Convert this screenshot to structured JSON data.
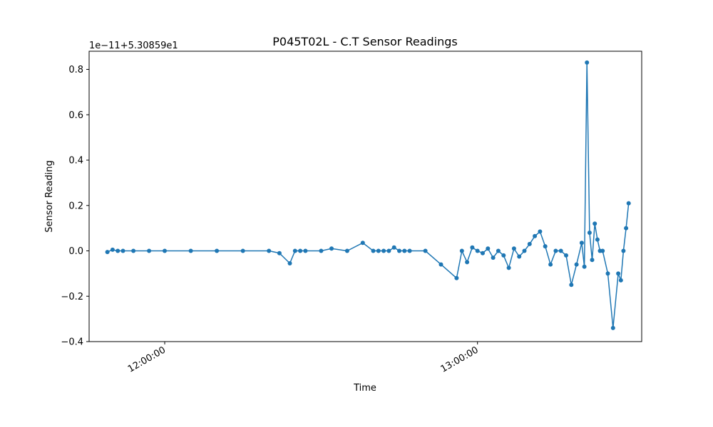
{
  "chart_data": {
    "type": "line",
    "title": "P045T02L - C.T Sensor Readings",
    "xlabel": "Time",
    "ylabel": "Sensor Reading",
    "offset_label": "1e−11+5.30859e1",
    "ylim": [
      -0.4,
      0.88
    ],
    "y_ticks": [
      {
        "value": -0.4,
        "label": "−0.4"
      },
      {
        "value": -0.2,
        "label": "−0.2"
      },
      {
        "value": 0.0,
        "label": "0.0"
      },
      {
        "value": 0.2,
        "label": "0.2"
      },
      {
        "value": 0.4,
        "label": "0.4"
      },
      {
        "value": 0.6,
        "label": "0.6"
      },
      {
        "value": 0.8,
        "label": "0.8"
      }
    ],
    "xlim": [
      "11:45:30",
      "13:31:30"
    ],
    "x_ticks": [
      {
        "value": "12:00:00",
        "label": "12:00:00"
      },
      {
        "value": "13:00:00",
        "label": "13:00:00"
      }
    ],
    "grid": false,
    "series_color": "#1f77b4",
    "series": [
      {
        "x": [
          "11:49:00",
          "11:50:00",
          "11:51:00",
          "11:52:00",
          "11:54:00",
          "11:57:00",
          "12:00:00",
          "12:05:00",
          "12:10:00",
          "12:15:00",
          "12:20:00",
          "12:22:00",
          "12:24:00",
          "12:25:00",
          "12:26:00",
          "12:27:00",
          "12:30:00",
          "12:32:00",
          "12:35:00",
          "12:38:00",
          "12:40:00",
          "12:41:00",
          "12:42:00",
          "12:43:00",
          "12:44:00",
          "12:45:00",
          "12:46:00",
          "12:47:00",
          "12:50:00",
          "12:53:00",
          "12:56:00",
          "12:57:00",
          "12:58:00",
          "12:59:00",
          "13:00:00",
          "13:01:00",
          "13:02:00",
          "13:03:00",
          "13:04:00",
          "13:05:00",
          "13:06:00",
          "13:07:00",
          "13:08:00",
          "13:09:00",
          "13:10:00",
          "13:11:00",
          "13:12:00",
          "13:13:00",
          "13:14:00",
          "13:15:00",
          "13:16:00",
          "13:17:00",
          "13:18:00",
          "13:19:00",
          "13:20:00",
          "13:20:30",
          "13:21:00",
          "13:21:30",
          "13:22:00",
          "13:22:30",
          "13:23:00",
          "13:23:30",
          "13:24:00",
          "13:25:00",
          "13:26:00",
          "13:27:00",
          "13:27:30",
          "13:28:00",
          "13:28:30",
          "13:29:00"
        ],
        "y": [
          -0.005,
          0.005,
          0.0,
          0.0,
          0.0,
          0.0,
          0.0,
          0.0,
          0.0,
          0.0,
          0.0,
          -0.01,
          -0.055,
          0.0,
          0.0,
          0.0,
          0.0,
          0.01,
          0.0,
          0.035,
          0.0,
          0.0,
          0.0,
          0.0,
          0.015,
          0.0,
          0.0,
          0.0,
          0.0,
          -0.06,
          -0.12,
          0.0,
          -0.05,
          0.015,
          0.0,
          -0.01,
          0.01,
          -0.03,
          0.0,
          -0.02,
          -0.075,
          0.01,
          -0.025,
          0.0,
          0.03,
          0.065,
          0.085,
          0.02,
          -0.06,
          0.0,
          0.0,
          -0.02,
          -0.15,
          -0.06,
          0.035,
          -0.07,
          0.83,
          0.08,
          -0.04,
          0.12,
          0.05,
          0.0,
          0.0,
          -0.1,
          -0.34,
          -0.1,
          -0.13,
          0.0,
          0.1,
          0.21
        ]
      }
    ]
  }
}
